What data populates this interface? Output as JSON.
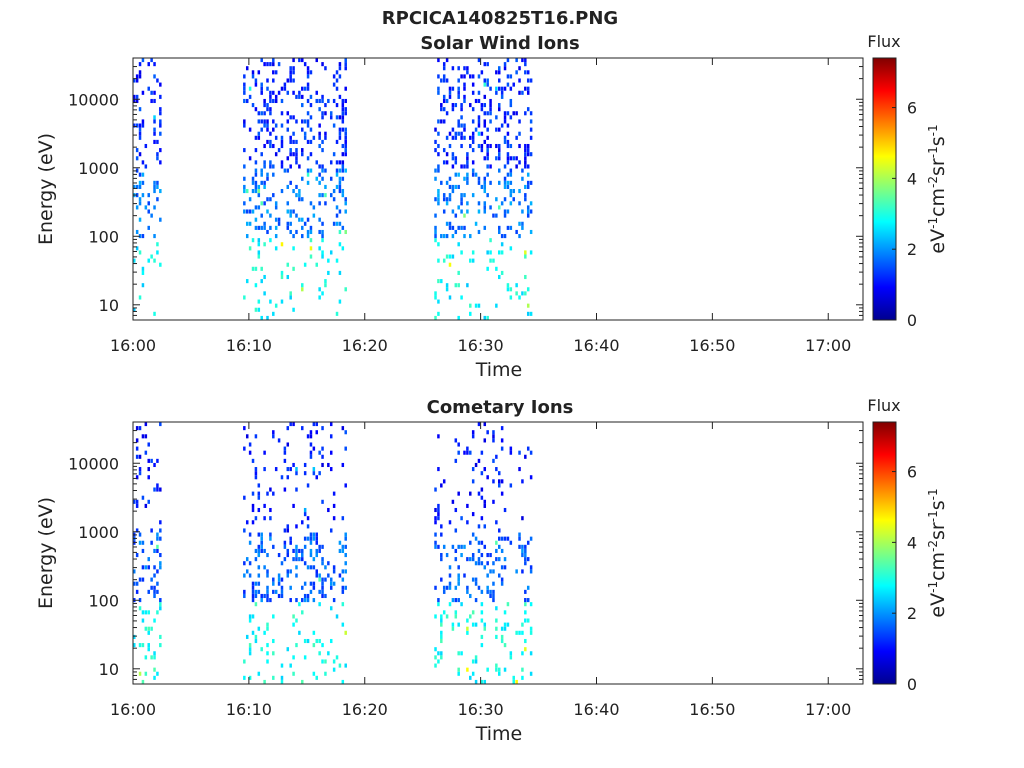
{
  "figure_title": "RPCICA140825T16.PNG",
  "colorbar": {
    "title": "Flux",
    "label_base": [
      "eV",
      "cm",
      "sr",
      "s"
    ],
    "label_exp": [
      "-1",
      "-2",
      "-1",
      "-1"
    ],
    "ticks": [
      "0",
      "2",
      "4",
      "6"
    ],
    "range": [
      0,
      7.4
    ],
    "scale": "jet"
  },
  "chart_data": [
    {
      "type": "heatmap",
      "title": "Solar Wind Ions",
      "xlabel": "Time",
      "ylabel": "Energy (eV)",
      "xlim": [
        "16:00",
        "17:03"
      ],
      "ylim": [
        6,
        40000
      ],
      "yscale": "log",
      "xticks": [
        "16:00",
        "16:10",
        "16:20",
        "16:30",
        "16:40",
        "16:50",
        "17:00"
      ],
      "yticks": [
        "10",
        "100",
        "1000",
        "10000"
      ],
      "grid": false,
      "data_intervals": [
        [
          "16:00",
          "16:02.5"
        ],
        [
          "16:09.5",
          "16:18.5"
        ],
        [
          "16:26",
          "16:34.5"
        ]
      ],
      "flux_summary": {
        "high_energy_above_1000eV": 1.2,
        "mid_energy_100_to_1000eV": 1.8,
        "low_energy_below_100eV": 2.8
      }
    },
    {
      "type": "heatmap",
      "title": "Cometary Ions",
      "xlabel": "Time",
      "ylabel": "Energy (eV)",
      "xlim": [
        "16:00",
        "17:03"
      ],
      "ylim": [
        6,
        40000
      ],
      "yscale": "log",
      "xticks": [
        "16:00",
        "16:10",
        "16:20",
        "16:30",
        "16:40",
        "16:50",
        "17:00"
      ],
      "yticks": [
        "10",
        "100",
        "1000",
        "10000"
      ],
      "grid": false,
      "data_intervals": [
        [
          "16:00",
          "16:02.5"
        ],
        [
          "16:09.5",
          "16:18.5"
        ],
        [
          "16:26",
          "16:34.5"
        ]
      ],
      "flux_summary": {
        "high_energy_above_1000eV": 1.1,
        "mid_energy_100_to_1000eV": 1.6,
        "low_energy_below_100eV": 2.9
      }
    }
  ]
}
